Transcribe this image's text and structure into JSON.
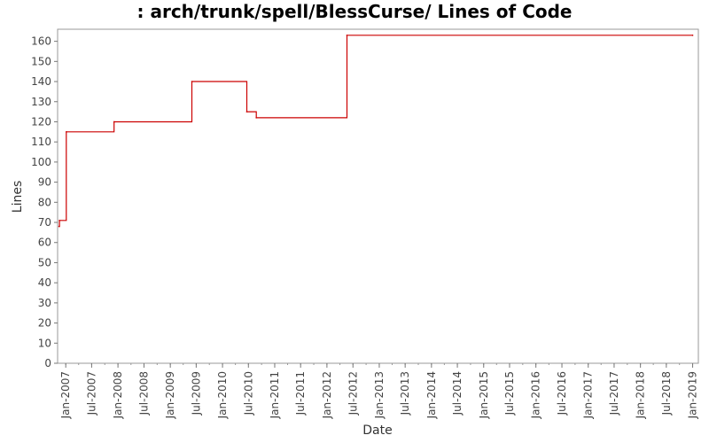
{
  "chart_data": {
    "type": "line",
    "title": ": arch/trunk/spell/BlessCurse/ Lines of Code",
    "xlabel": "Date",
    "ylabel": "Lines",
    "ylim": [
      0,
      166
    ],
    "xlim": [
      "2006-11-05",
      "2019-02-10"
    ],
    "grid": false,
    "line_color": "#cc0000",
    "y_ticks": [
      0,
      10,
      20,
      30,
      40,
      50,
      60,
      70,
      80,
      90,
      100,
      110,
      120,
      130,
      140,
      150,
      160
    ],
    "x_ticks": [
      "Jan-2007",
      "Jul-2007",
      "Jan-2008",
      "Jul-2008",
      "Jan-2009",
      "Jul-2009",
      "Jan-2010",
      "Jul-2010",
      "Jan-2011",
      "Jul-2011",
      "Jan-2012",
      "Jul-2012",
      "Jan-2013",
      "Jul-2013",
      "Jan-2014",
      "Jul-2014",
      "Jan-2015",
      "Jul-2015",
      "Jan-2016",
      "Jul-2016",
      "Jan-2017",
      "Jul-2017",
      "Jan-2018",
      "Jul-2018",
      "Jan-2019"
    ],
    "series": [
      {
        "step": "post",
        "points": [
          {
            "x": "2006-11-15",
            "y": 68
          },
          {
            "x": "2006-11-18",
            "y": 71
          },
          {
            "x": "2007-01-05",
            "y": 115
          },
          {
            "x": "2007-12-05",
            "y": 120
          },
          {
            "x": "2009-06-01",
            "y": 140
          },
          {
            "x": "2010-06-20",
            "y": 125
          },
          {
            "x": "2010-08-25",
            "y": 122
          },
          {
            "x": "2012-05-20",
            "y": 163
          },
          {
            "x": "2019-01-01",
            "y": 163
          }
        ]
      }
    ]
  }
}
